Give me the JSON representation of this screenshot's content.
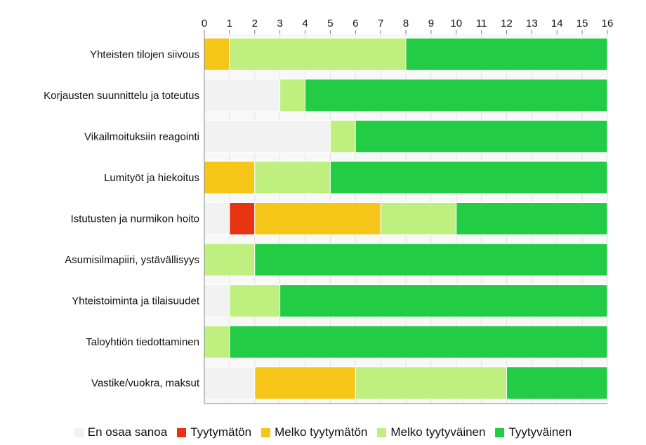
{
  "chart_data": {
    "type": "bar",
    "orientation": "horizontal",
    "stacked": true,
    "categories": [
      "Yhteisten tilojen siivous",
      "Korjausten suunnittelu ja toteutus",
      "Vikailmoituksiin reagointi",
      "Lumityöt ja hiekoitus",
      "Istutusten ja nurmikon hoito",
      "Asumisilmapiiri, ystävällisyys",
      "Yhteistoiminta ja tilaisuudet",
      "Taloyhtiön tiedottaminen",
      "Vastike/vuokra, maksut"
    ],
    "series": [
      {
        "name": "En osaa sanoa",
        "color": "#f2f2f2",
        "values": [
          0,
          3,
          5,
          0,
          1,
          0,
          1,
          0,
          2
        ]
      },
      {
        "name": "Tyytymätön",
        "color": "#e63312",
        "values": [
          0,
          0,
          0,
          0,
          1,
          0,
          0,
          0,
          0
        ]
      },
      {
        "name": "Melko tyytymätön",
        "color": "#f5c518",
        "values": [
          1,
          0,
          0,
          2,
          5,
          0,
          0,
          0,
          4
        ]
      },
      {
        "name": "Melko tyytyväinen",
        "color": "#bfef7f",
        "values": [
          7,
          1,
          1,
          3,
          3,
          2,
          2,
          1,
          6
        ]
      },
      {
        "name": "Tyytyväinen",
        "color": "#22cc44",
        "values": [
          8,
          12,
          10,
          11,
          6,
          14,
          13,
          15,
          4
        ]
      }
    ],
    "xlim": [
      0,
      16
    ],
    "x_ticks": [
      "0",
      "1",
      "2",
      "3",
      "4",
      "5",
      "6",
      "7",
      "8",
      "9",
      "10",
      "11",
      "12",
      "13",
      "14",
      "15",
      "16"
    ],
    "x_axis_position": "top",
    "grid": true,
    "legend_position": "bottom",
    "title": "",
    "xlabel": "",
    "ylabel": ""
  }
}
